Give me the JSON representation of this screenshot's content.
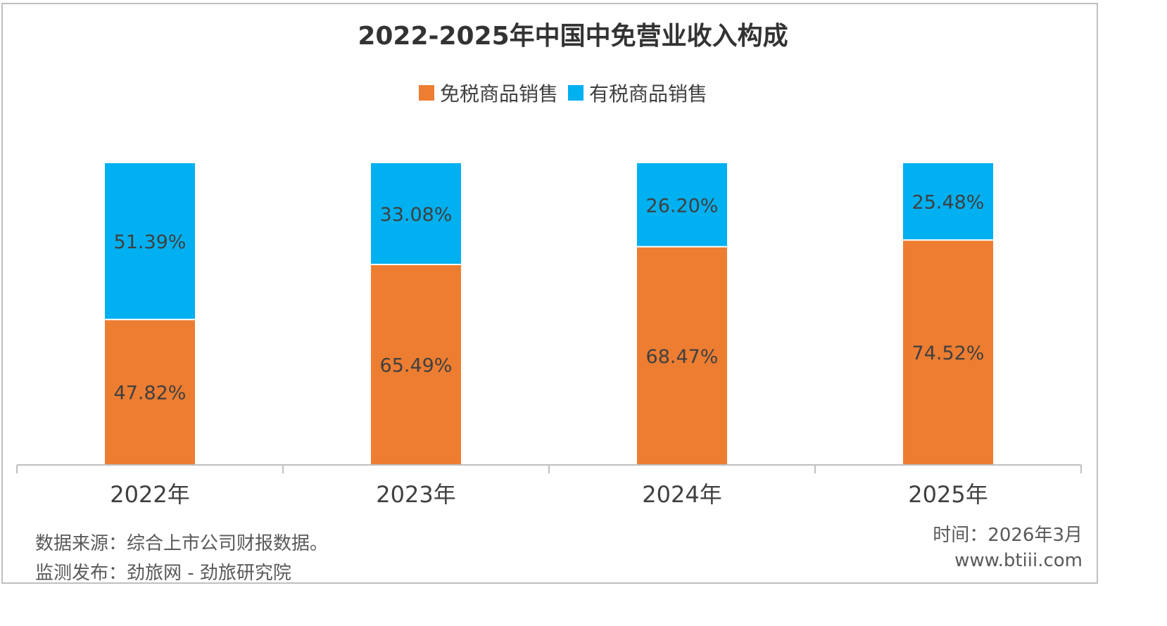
{
  "chart_data": {
    "type": "bar",
    "stacked": true,
    "title": "2022-2025年中国中免营业收入构成",
    "categories": [
      "2022年",
      "2023年",
      "2024年",
      "2025年"
    ],
    "series": [
      {
        "name": "免税商品销售",
        "values": [
          47.82,
          65.49,
          68.47,
          74.52
        ],
        "labels": [
          "47.82%",
          "65.49%",
          "68.47%",
          "74.52%"
        ],
        "color": "#ED7D31"
      },
      {
        "name": "有税商品销售",
        "values": [
          51.39,
          33.08,
          26.2,
          25.48
        ],
        "labels": [
          "51.39%",
          "33.08%",
          "26.20%",
          "25.48%"
        ],
        "color": "#00B0F0"
      }
    ],
    "ylim": [
      0,
      100
    ],
    "grid": false,
    "legend": "top-center"
  },
  "footer": {
    "source": "数据来源：综合上市公司财报数据。",
    "publisher": "监测发布：劲旅网 - 劲旅研究院",
    "time": "时间：2026年3月",
    "website": "www.btiii.com"
  }
}
